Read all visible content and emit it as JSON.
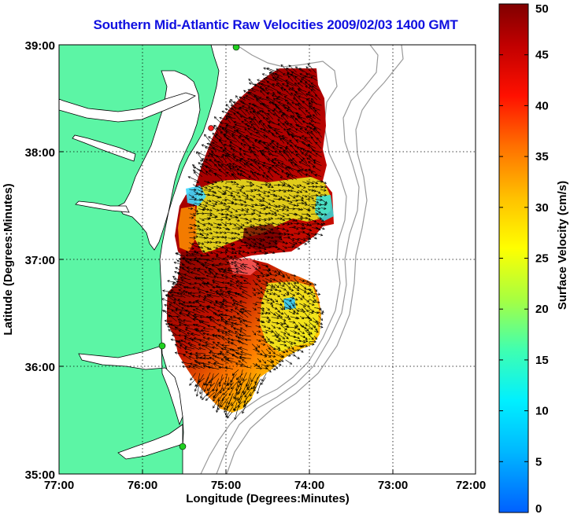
{
  "title": "Southern Mid-Atlantic Raw Velocities 2009/02/03 1400 GMT",
  "x_axis": {
    "label": "Longitude (Degrees:Minutes)",
    "ticks": [
      "77:00",
      "76:00",
      "75:00",
      "74:00",
      "73:00",
      "72:00"
    ]
  },
  "y_axis": {
    "label": "Latitude (Degrees:Minutes)",
    "ticks": [
      "39:00",
      "38:00",
      "37:00",
      "36:00",
      "35:00"
    ]
  },
  "colorbar": {
    "label": "Surface Velocity (cm/s)",
    "ticks": [
      "50",
      "45",
      "40",
      "35",
      "30",
      "25",
      "20",
      "15",
      "10",
      "5",
      "0"
    ],
    "min": 0,
    "max": 50
  },
  "map": {
    "lon_range": [
      -77,
      -72
    ],
    "lat_range": [
      35,
      39
    ],
    "grid": "dotted",
    "land_color": "#5cf5a5",
    "vector_color": "#000000"
  }
}
